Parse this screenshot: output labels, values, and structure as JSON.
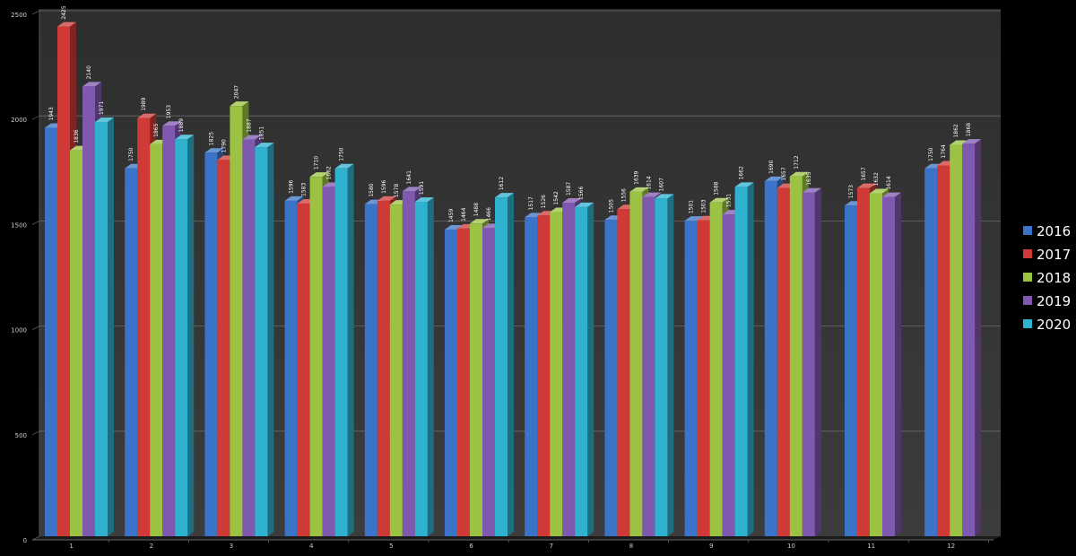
{
  "chart_data": {
    "type": "bar",
    "style": "3d-clustered",
    "categories": [
      "1",
      "2",
      "3",
      "4",
      "5",
      "6",
      "7",
      "8",
      "9",
      "10",
      "11",
      "12"
    ],
    "ylim": [
      0,
      2500
    ],
    "yticks": [
      "0",
      "500",
      "1000",
      "1500",
      "2000",
      "2500"
    ],
    "grid": true,
    "legend_position": "right",
    "series": [
      {
        "name": "2016",
        "color": "#3a73c8",
        "values": [
          1943,
          1750,
          1825,
          1596,
          1580,
          1459,
          1517,
          1505,
          1501,
          1690,
          1573,
          1750
        ]
      },
      {
        "name": "2017",
        "color": "#d03a36",
        "values": [
          2425,
          1989,
          1790,
          1583,
          1596,
          1464,
          1526,
          1556,
          1503,
          1657,
          1657,
          1764
        ]
      },
      {
        "name": "2018",
        "color": "#9bc242",
        "values": [
          1836,
          1865,
          2047,
          1710,
          1578,
          1488,
          1542,
          1639,
          1588,
          1712,
          1632,
          1862
        ]
      },
      {
        "name": "2019",
        "color": "#7f58b0",
        "values": [
          2140,
          1953,
          1887,
          1662,
          1641,
          1466,
          1587,
          1614,
          1531,
          1635,
          1614,
          1868
        ]
      },
      {
        "name": "2020",
        "color": "#2fb2cf",
        "values": [
          1971,
          1889,
          1851,
          1750,
          1591,
          1612,
          1566,
          1607,
          1662,
          null,
          null,
          null
        ]
      }
    ]
  }
}
